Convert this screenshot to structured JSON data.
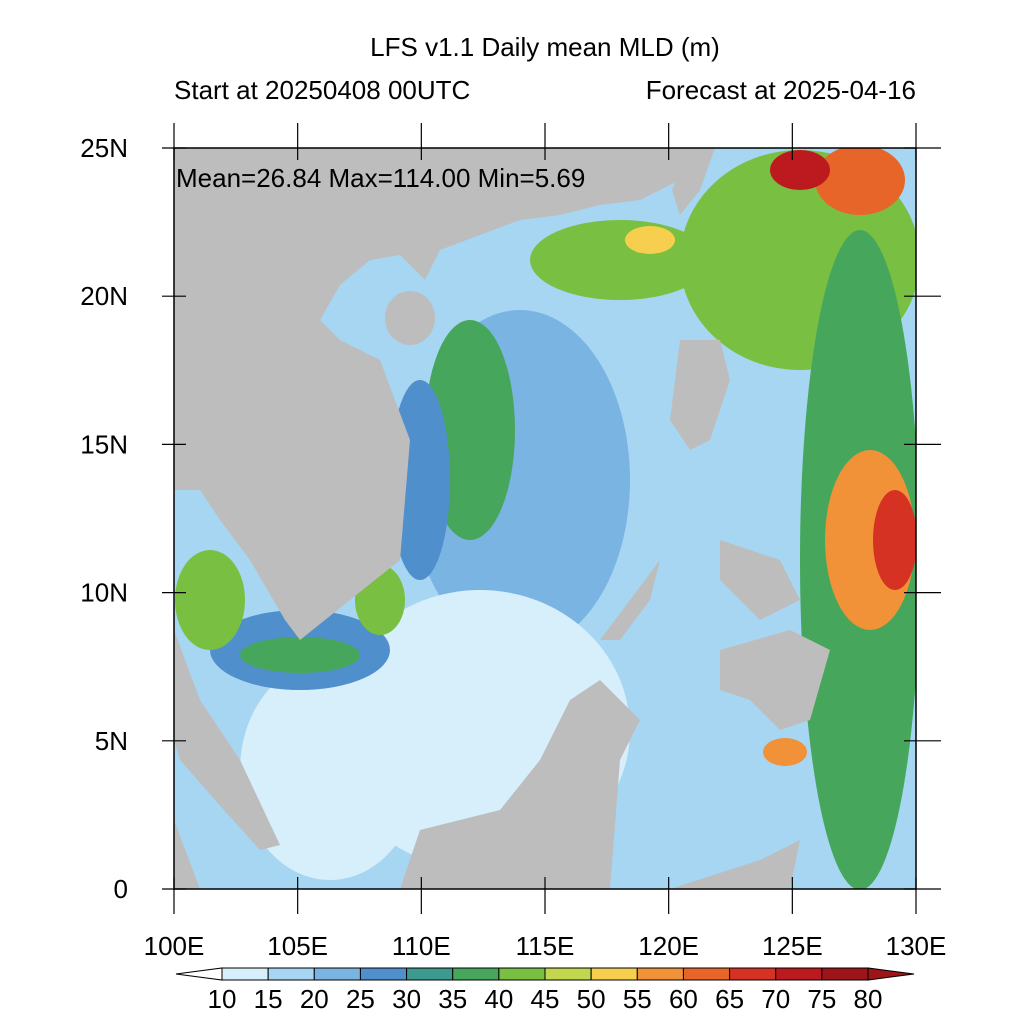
{
  "title": "LFS v1.1 Daily mean MLD (m)",
  "start": "Start at 20250408 00UTC",
  "forecast": "Forecast at 2025-04-16",
  "stats": "Mean=26.84  Max=114.00  Min=5.69",
  "xlim": [
    100,
    130
  ],
  "ylim": [
    0,
    25
  ],
  "lat_ticks": [
    0,
    {
      "value": 5,
      "label": "5N"
    },
    {
      "value": 10,
      "label": "10N"
    },
    {
      "value": 15,
      "label": "15N"
    },
    {
      "value": 20,
      "label": "20N"
    },
    {
      "value": 25,
      "label": "25N"
    }
  ],
  "lon_ticks": [
    {
      "value": 100,
      "label": "100E"
    },
    {
      "value": 105,
      "label": "105E"
    },
    {
      "value": 110,
      "label": "110E"
    },
    {
      "value": 115,
      "label": "115E"
    },
    {
      "value": 120,
      "label": "120E"
    },
    {
      "value": 125,
      "label": "125E"
    },
    {
      "value": 130,
      "label": "130E"
    }
  ],
  "colorbar": {
    "levels": [
      10,
      15,
      20,
      25,
      30,
      35,
      40,
      45,
      50,
      55,
      60,
      65,
      70,
      75,
      80
    ],
    "colors": [
      "#ffffff",
      "#d6effa",
      "#a6d6f2",
      "#7ab4e2",
      "#4f8fcc",
      "#3d9a8e",
      "#46a75c",
      "#78bf42",
      "#c3d74e",
      "#f7cf4f",
      "#f19138",
      "#e8652a",
      "#d63223",
      "#bd1a20",
      "#9e1519",
      "#9e1519"
    ]
  }
}
